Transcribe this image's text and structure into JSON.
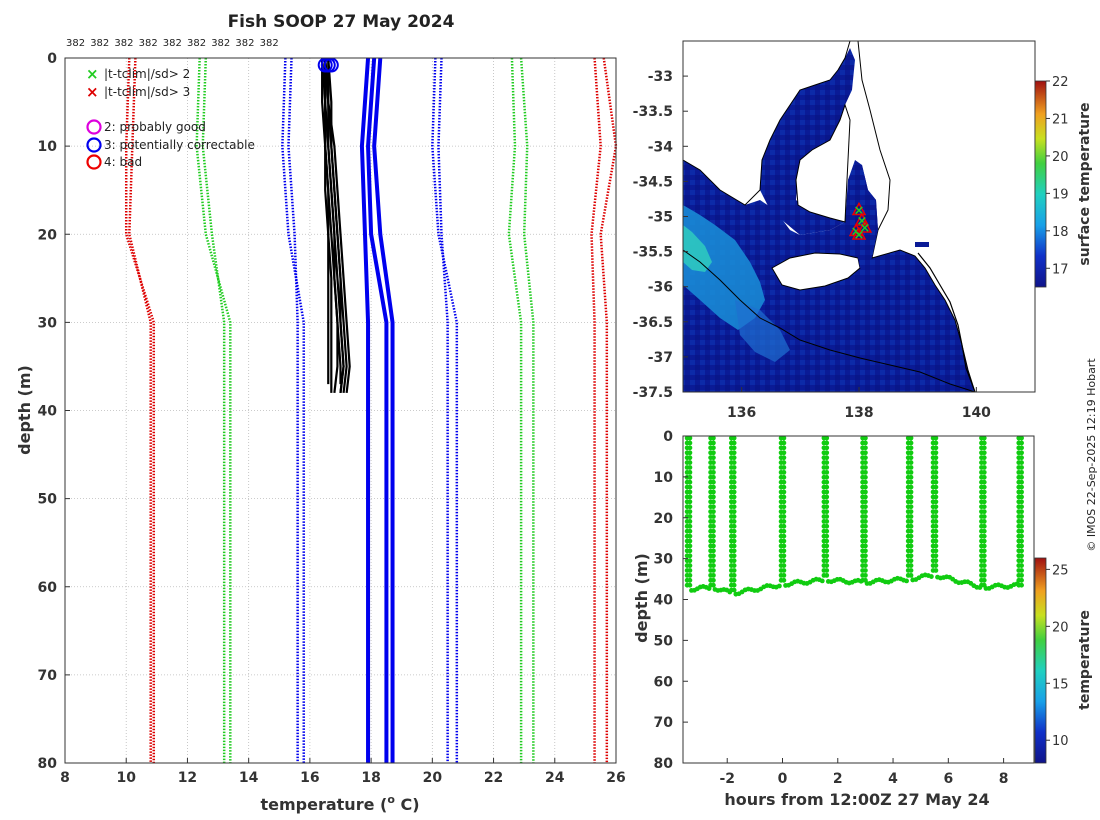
{
  "colors": {
    "limit_sd2": "#22cc22",
    "limit_sd3": "#dd0000",
    "clim_mean": "#0000ee",
    "profile": "#000000",
    "flag2": "#dd00dd",
    "flag3": "#0000ee",
    "flag4": "#ee0000",
    "ocean_sst": "#0a1a96",
    "track": "#11cc11"
  },
  "profile_chart": {
    "type": "line",
    "title": "Fish SOOP 27 May 2024",
    "top_labels": [
      "382",
      "382",
      "382",
      "382",
      "382",
      "382",
      "382",
      "382",
      "382"
    ],
    "xlabel": "temperature (",
    "xlabel_sup": "o",
    "xlabel_end": " C)",
    "ylabel": "depth (m)",
    "xlim": [
      8,
      26
    ],
    "ylim": [
      80,
      0
    ],
    "xticks": [
      "8",
      "10",
      "12",
      "14",
      "16",
      "18",
      "20",
      "22",
      "24",
      "26"
    ],
    "yticks": [
      "0",
      "10",
      "20",
      "30",
      "40",
      "50",
      "60",
      "70",
      "80"
    ],
    "legend": {
      "sd2": "|t-tclim|/sd> 2",
      "sd3": "|t-tclim|/sd> 3",
      "flag2": "2: probably good",
      "flag3": "3: potentially correctable",
      "flag4": "4: bad"
    },
    "climatology_depths": [
      0,
      10,
      20,
      30,
      80
    ],
    "climatology_lines": [
      {
        "name": "clim-minus-3sd",
        "color": "limit_sd3",
        "values": [
          10.1,
          10.0,
          10.0,
          10.9,
          10.9
        ]
      },
      {
        "name": "clim-minus-3sd-b",
        "color": "limit_sd3",
        "values": [
          10.3,
          10.2,
          10.1,
          10.8,
          10.8
        ]
      },
      {
        "name": "clim-minus-2sd",
        "color": "limit_sd2",
        "values": [
          12.4,
          12.3,
          12.6,
          13.4,
          13.4
        ]
      },
      {
        "name": "clim-minus-2sd-b",
        "color": "limit_sd2",
        "values": [
          12.6,
          12.5,
          12.8,
          13.2,
          13.2
        ]
      },
      {
        "name": "clim-minus-1sd",
        "color": "clim_mean",
        "values": [
          15.2,
          15.1,
          15.3,
          15.8,
          15.8
        ]
      },
      {
        "name": "clim-minus-1sd-b",
        "color": "clim_mean",
        "values": [
          15.4,
          15.3,
          15.5,
          15.6,
          15.6
        ]
      },
      {
        "name": "clim-mean-a",
        "color": "clim_mean",
        "values": [
          18.1,
          17.9,
          18.0,
          18.5,
          18.5
        ],
        "solid": true
      },
      {
        "name": "clim-mean-b",
        "color": "clim_mean",
        "values": [
          18.3,
          18.1,
          18.3,
          18.7,
          18.7
        ],
        "solid": true
      },
      {
        "name": "clim-mean-c",
        "color": "clim_mean",
        "values": [
          17.9,
          17.7,
          17.8,
          17.9,
          17.9
        ],
        "solid": true
      },
      {
        "name": "clim-plus-1sd",
        "color": "clim_mean",
        "values": [
          20.1,
          20.0,
          20.2,
          20.8,
          20.8
        ]
      },
      {
        "name": "clim-plus-1sd-b",
        "color": "clim_mean",
        "values": [
          20.3,
          20.2,
          20.3,
          20.5,
          20.5
        ]
      },
      {
        "name": "clim-plus-2sd",
        "color": "limit_sd2",
        "values": [
          22.6,
          22.7,
          22.5,
          22.9,
          22.9
        ]
      },
      {
        "name": "clim-plus-2sd-b",
        "color": "limit_sd2",
        "values": [
          22.9,
          23.1,
          23.0,
          23.3,
          23.3
        ]
      },
      {
        "name": "clim-plus-3sd",
        "color": "limit_sd3",
        "values": [
          25.3,
          25.5,
          25.2,
          25.3,
          25.3
        ]
      },
      {
        "name": "clim-plus-3sd-b",
        "color": "limit_sd3",
        "values": [
          25.6,
          26.0,
          25.5,
          25.7,
          25.7
        ]
      }
    ],
    "profiles": [
      {
        "depths": [
          0,
          5,
          10,
          15,
          20,
          25,
          30,
          35,
          38
        ],
        "temps": [
          16.5,
          16.6,
          16.7,
          16.8,
          16.9,
          17.0,
          17.1,
          17.2,
          17.1
        ]
      },
      {
        "depths": [
          0,
          5,
          10,
          15,
          20,
          25,
          30,
          35,
          38
        ],
        "temps": [
          16.5,
          16.5,
          16.6,
          16.7,
          16.8,
          16.9,
          17.0,
          17.1,
          17.0
        ]
      },
      {
        "depths": [
          0,
          5,
          10,
          15,
          20,
          25,
          30,
          35,
          37
        ],
        "temps": [
          16.4,
          16.5,
          16.5,
          16.6,
          16.7,
          16.8,
          16.9,
          17.0,
          17.0
        ]
      },
      {
        "depths": [
          0,
          5,
          10,
          15,
          20,
          25,
          30,
          35,
          38
        ],
        "temps": [
          16.6,
          16.6,
          16.8,
          16.9,
          17.0,
          17.1,
          17.2,
          17.3,
          17.2
        ]
      },
      {
        "depths": [
          0,
          5,
          10,
          15,
          20,
          25,
          30,
          35,
          38
        ],
        "temps": [
          16.5,
          16.5,
          16.5,
          16.6,
          16.6,
          16.7,
          16.7,
          16.7,
          16.7
        ]
      },
      {
        "depths": [
          0,
          5,
          10,
          15,
          20,
          25,
          30,
          35,
          37
        ],
        "temps": [
          16.4,
          16.4,
          16.5,
          16.5,
          16.6,
          16.6,
          16.6,
          16.6,
          16.6
        ]
      },
      {
        "depths": [
          0,
          5,
          10,
          15,
          20,
          25,
          30,
          35,
          38
        ],
        "temps": [
          16.6,
          16.7,
          16.7,
          16.8,
          16.9,
          17.0,
          17.0,
          17.1,
          17.0
        ]
      },
      {
        "depths": [
          0,
          5,
          10,
          15,
          20,
          25,
          30,
          35,
          38
        ],
        "temps": [
          16.5,
          16.6,
          16.6,
          16.7,
          16.8,
          16.8,
          16.9,
          16.9,
          16.8
        ]
      }
    ],
    "surface_flags": [
      {
        "temp": 16.5,
        "depth": 0.8,
        "flag": 3
      },
      {
        "temp": 16.6,
        "depth": 0.8,
        "flag": 3
      },
      {
        "temp": 16.7,
        "depth": 0.8,
        "flag": 3
      }
    ]
  },
  "map_chart": {
    "type": "heatmap",
    "colorbar_label": "surface temperature",
    "colorbar_ticks": [
      "22",
      "21",
      "20",
      "19",
      "18",
      "17"
    ],
    "colorbar_range": [
      16.5,
      22
    ],
    "xlim": [
      135,
      141
    ],
    "ylim": [
      -37.5,
      -32.5
    ],
    "xticks": [
      "136",
      "138",
      "140"
    ],
    "yticks": [
      "-33",
      "-33.5",
      "-34",
      "-34.5",
      "-35",
      "-35.5",
      "-36",
      "-36.5",
      "-37",
      "-37.5"
    ],
    "station_lon": [
      138.0,
      138.05,
      138.1,
      137.95,
      138.0
    ],
    "station_lat": [
      -34.9,
      -35.05,
      -35.15,
      -35.2,
      -35.25
    ]
  },
  "track_chart": {
    "type": "scatter",
    "xlabel": "hours from 12:00Z 27 May 24",
    "ylabel": "depth (m)",
    "xlim": [
      -3.6,
      9.1
    ],
    "ylim": [
      80,
      0
    ],
    "xticks": [
      "-2",
      "0",
      "2",
      "4",
      "6",
      "8"
    ],
    "yticks": [
      "0",
      "10",
      "20",
      "30",
      "40",
      "50",
      "60",
      "70",
      "80"
    ],
    "colorbar_label": "temperature",
    "colorbar_ticks": [
      "25",
      "20",
      "15",
      "10"
    ],
    "colorbar_range": [
      8,
      26
    ],
    "casts": [
      {
        "t": -3.4,
        "bottom": 37.5
      },
      {
        "t": -2.55,
        "bottom": 37.0
      },
      {
        "t": -1.8,
        "bottom": 38.5
      },
      {
        "t": 0.0,
        "bottom": 36.3
      },
      {
        "t": 1.55,
        "bottom": 35.2
      },
      {
        "t": 2.95,
        "bottom": 35.8
      },
      {
        "t": 4.6,
        "bottom": 35.0
      },
      {
        "t": 5.5,
        "bottom": 34.0
      },
      {
        "t": 7.25,
        "bottom": 37.0
      },
      {
        "t": 8.6,
        "bottom": 36.5
      }
    ]
  },
  "side_credit": "© IMOS 22-Sep-2025 12:19 Hobart"
}
